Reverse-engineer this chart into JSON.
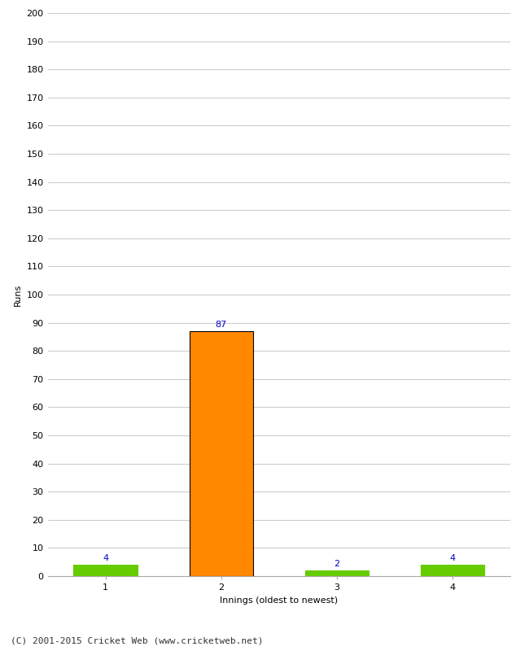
{
  "categories": [
    1,
    2,
    3,
    4
  ],
  "values": [
    4,
    87,
    2,
    4
  ],
  "bar_colors": [
    "#66cc00",
    "#ff8800",
    "#66cc00",
    "#66cc00"
  ],
  "bar_edgecolors": [
    "#66cc00",
    "#000000",
    "#66cc00",
    "#66cc00"
  ],
  "ylabel": "Runs",
  "xlabel": "Innings (oldest to newest)",
  "ylim": [
    0,
    200
  ],
  "yticks": [
    0,
    10,
    20,
    30,
    40,
    50,
    60,
    70,
    80,
    90,
    100,
    110,
    120,
    130,
    140,
    150,
    160,
    170,
    180,
    190,
    200
  ],
  "label_color": "#0000cc",
  "label_fontsize": 8,
  "axis_label_fontsize": 8,
  "tick_fontsize": 8,
  "footer_text": "(C) 2001-2015 Cricket Web (www.cricketweb.net)",
  "footer_fontsize": 8,
  "background_color": "#ffffff",
  "grid_color": "#cccccc",
  "bar_width": 0.55
}
